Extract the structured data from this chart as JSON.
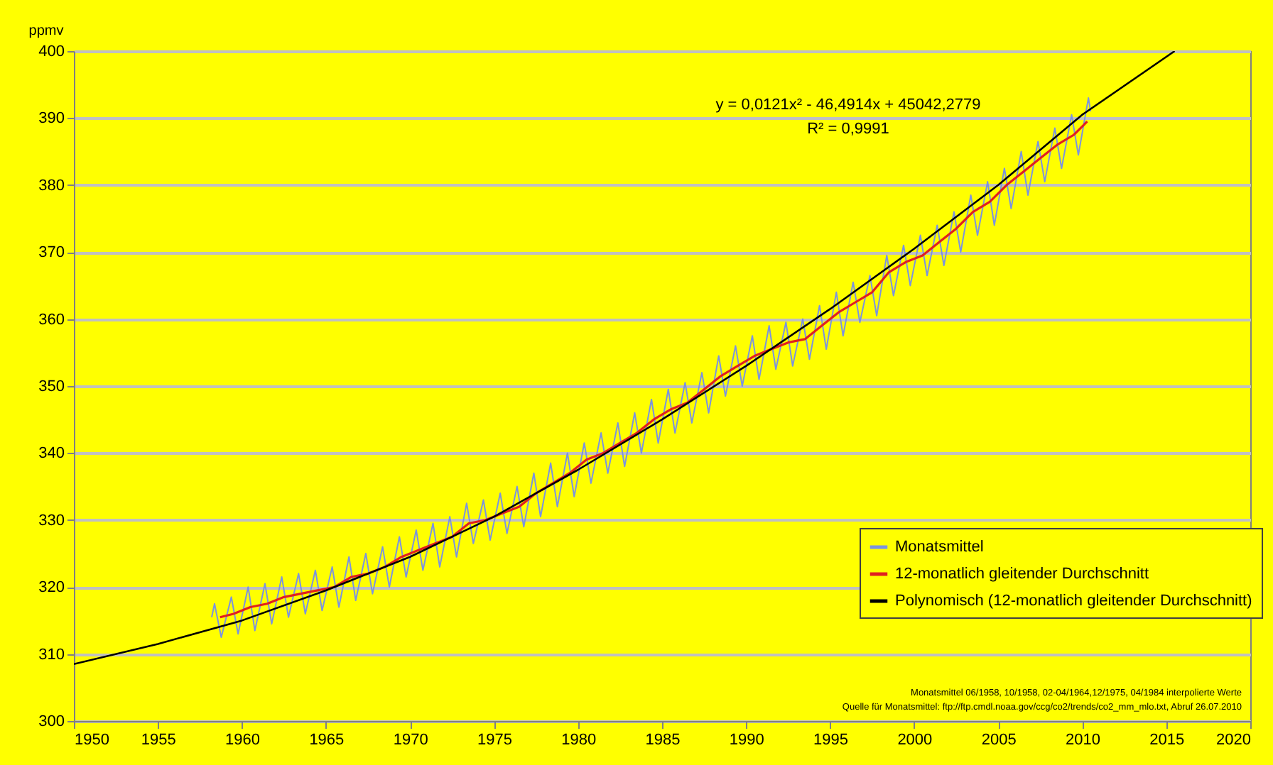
{
  "chart_data": {
    "type": "line",
    "ylabel": "ppmv",
    "xlim": [
      1950,
      2020
    ],
    "xticks": [
      1950,
      1955,
      1960,
      1965,
      1970,
      1975,
      1980,
      1985,
      1990,
      1995,
      2000,
      2005,
      2010,
      2015,
      2020
    ],
    "ylim": [
      300,
      400
    ],
    "yticks": [
      300,
      310,
      320,
      330,
      340,
      350,
      360,
      370,
      380,
      390,
      400
    ],
    "grid": "y",
    "legend": "bottom right",
    "annotations": [
      "y = 0,0121x² - 46,4914x + 45042,2779",
      "R² = 0,9991",
      "Monatsmittel 06/1958, 10/1958, 02-04/1964,12/1975, 04/1984 interpolierte Werte",
      "Quelle für Monatsmittel: ftp://ftp.cmdl.noaa.gov/ccg/co2/trends/co2_mm_mlo.txt, Abruf 26.07.2010"
    ],
    "series": [
      {
        "name": "Monatsmittel",
        "color": "#7b93e0",
        "x": [
          1958.2,
          1958.37,
          1958.77,
          1959.37,
          1959.77,
          1960.37,
          1960.77,
          1961.37,
          1961.77,
          1962.37,
          1962.77,
          1963.37,
          1963.77,
          1964.37,
          1964.77,
          1965.37,
          1965.77,
          1966.37,
          1966.77,
          1967.37,
          1967.77,
          1968.37,
          1968.77,
          1969.37,
          1969.77,
          1970.37,
          1970.77,
          1971.37,
          1971.77,
          1972.37,
          1972.77,
          1973.37,
          1973.77,
          1974.37,
          1974.77,
          1975.37,
          1975.77,
          1976.37,
          1976.77,
          1977.37,
          1977.77,
          1978.37,
          1978.77,
          1979.37,
          1979.77,
          1980.37,
          1980.77,
          1981.37,
          1981.77,
          1982.37,
          1982.77,
          1983.37,
          1983.77,
          1984.37,
          1984.77,
          1985.37,
          1985.77,
          1986.37,
          1986.77,
          1987.37,
          1987.77,
          1988.37,
          1988.77,
          1989.37,
          1989.77,
          1990.37,
          1990.77,
          1991.37,
          1991.77,
          1992.37,
          1992.77,
          1993.37,
          1993.77,
          1994.37,
          1994.77,
          1995.37,
          1995.77,
          1996.37,
          1996.77,
          1997.37,
          1997.77,
          1998.37,
          1998.77,
          1999.37,
          1999.77,
          2000.37,
          2000.77,
          2001.37,
          2001.77,
          2002.37,
          2002.77,
          2003.37,
          2003.77,
          2004.37,
          2004.77,
          2005.37,
          2005.77,
          2006.37,
          2006.77,
          2007.37,
          2007.77,
          2008.37,
          2008.77,
          2009.37,
          2009.77,
          2010.37,
          2010.5
        ],
        "values": [
          315.5,
          317.5,
          312.5,
          318.5,
          313,
          320,
          313.5,
          320.5,
          314.5,
          321.5,
          315.5,
          322,
          316,
          322.5,
          316.5,
          323,
          317,
          324.5,
          318,
          325,
          319,
          326,
          320,
          327.5,
          321.5,
          328.5,
          322.5,
          329.5,
          323,
          330.5,
          324.5,
          332.5,
          326.5,
          333,
          327,
          334,
          328,
          335,
          329,
          337,
          330.5,
          338.5,
          332,
          340,
          333.5,
          341.5,
          335.5,
          343,
          337,
          344.5,
          338,
          346,
          340,
          348,
          341.5,
          349.5,
          343,
          350.5,
          344.5,
          352,
          346,
          354.5,
          348.5,
          356,
          350,
          357.5,
          351,
          359,
          352.5,
          359.5,
          353,
          360,
          354,
          362,
          355.5,
          364,
          357.5,
          365.5,
          359.5,
          366.5,
          360.5,
          369.5,
          363.5,
          371,
          365,
          372.5,
          366.5,
          374,
          368,
          376,
          370,
          378.5,
          372.5,
          380.5,
          374,
          382.5,
          376.5,
          385,
          378.5,
          386.5,
          380.5,
          388.5,
          382.5,
          390.5,
          384.5,
          393,
          391
        ]
      },
      {
        "name": "12-monatlich gleitender Durchschnitt",
        "color": "#e02020",
        "x": [
          1958.7,
          1959.5,
          1960.5,
          1961.5,
          1962.5,
          1963.5,
          1964.5,
          1965.5,
          1966.5,
          1967.5,
          1968.5,
          1969.5,
          1970.5,
          1971.5,
          1972.5,
          1973.5,
          1974.5,
          1975.5,
          1976.5,
          1977.5,
          1978.5,
          1979.5,
          1980.5,
          1981.5,
          1982.5,
          1983.5,
          1984.5,
          1985.5,
          1986.5,
          1987.5,
          1988.5,
          1989.5,
          1990.5,
          1991.5,
          1992.5,
          1993.5,
          1994.5,
          1995.5,
          1996.5,
          1997.5,
          1998.5,
          1999.5,
          2000.5,
          2001.5,
          2002.5,
          2003.5,
          2004.5,
          2005.5,
          2006.5,
          2007.5,
          2008.5,
          2009.5,
          2010.3
        ],
        "values": [
          315.5,
          316,
          317,
          317.5,
          318.5,
          319,
          319.5,
          320,
          321.5,
          322,
          323,
          324.5,
          325.5,
          326.5,
          327.5,
          329.5,
          330,
          331,
          332,
          334,
          335.5,
          337,
          339,
          340,
          341.5,
          343,
          345,
          346.5,
          347.5,
          349.5,
          351.5,
          353,
          354.5,
          355.5,
          356.5,
          357,
          359,
          361,
          362.5,
          364,
          367,
          368.5,
          369.5,
          371.5,
          373.5,
          376,
          377.5,
          380,
          382,
          384,
          386,
          387.5,
          389.5
        ]
      },
      {
        "name": "Polynomisch (12-monatlich gleitender Durchschnitt)",
        "color": "#000000",
        "x": [
          1950,
          1955,
          1960,
          1965,
          1970,
          1975,
          1980,
          1985,
          1990,
          1995,
          2000,
          2005,
          2010,
          2015.5
        ],
        "values": [
          308.5,
          311.5,
          315,
          319.5,
          324.5,
          330.5,
          337.5,
          345,
          353,
          361.5,
          370.5,
          380,
          390.5,
          400
        ]
      }
    ]
  }
}
